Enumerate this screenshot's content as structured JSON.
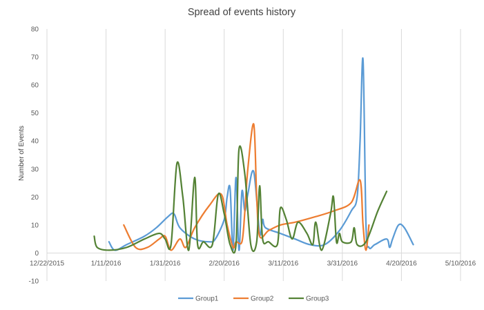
{
  "chart_data": {
    "type": "line",
    "title": "Spread of events history",
    "xlabel": "",
    "ylabel": "Number of Events",
    "x_type": "date",
    "xlim": [
      "2015-12-22",
      "2016-05-10"
    ],
    "ylim": [
      -10,
      80
    ],
    "x_ticks": [
      "12/22/2015",
      "1/11/2016",
      "1/31/2016",
      "2/20/2016",
      "3/11/2016",
      "3/31/2016",
      "4/20/2016",
      "5/10/2016"
    ],
    "y_ticks": [
      "-10",
      "0",
      "10",
      "20",
      "30",
      "40",
      "50",
      "60",
      "70",
      "80"
    ],
    "grid": "vertical",
    "legend": "bottom",
    "smooth": true,
    "series": [
      {
        "name": "Group1",
        "color": "#5B9BD5",
        "points": [
          [
            "2016-01-12",
            4
          ],
          [
            "2016-01-14",
            1
          ],
          [
            "2016-01-18",
            3
          ],
          [
            "2016-01-24",
            6
          ],
          [
            "2016-01-28",
            9
          ],
          [
            "2016-02-01",
            13
          ],
          [
            "2016-02-03",
            14
          ],
          [
            "2016-02-05",
            9
          ],
          [
            "2016-02-10",
            5
          ],
          [
            "2016-02-15",
            4
          ],
          [
            "2016-02-17",
            5
          ],
          [
            "2016-02-20",
            12
          ],
          [
            "2016-02-21",
            20
          ],
          [
            "2016-02-22",
            23
          ],
          [
            "2016-02-23",
            1
          ],
          [
            "2016-02-24",
            27
          ],
          [
            "2016-02-25",
            1
          ],
          [
            "2016-02-26",
            22
          ],
          [
            "2016-02-27",
            15
          ],
          [
            "2016-02-28",
            21
          ],
          [
            "2016-03-01",
            29
          ],
          [
            "2016-03-03",
            7
          ],
          [
            "2016-03-04",
            12
          ],
          [
            "2016-03-05",
            9
          ],
          [
            "2016-03-10",
            7
          ],
          [
            "2016-03-15",
            5
          ],
          [
            "2016-03-20",
            3
          ],
          [
            "2016-03-25",
            3
          ],
          [
            "2016-03-30",
            8
          ],
          [
            "2016-04-03",
            15
          ],
          [
            "2016-04-05",
            20
          ],
          [
            "2016-04-06",
            40
          ],
          [
            "2016-04-07",
            69
          ],
          [
            "2016-04-08",
            10
          ],
          [
            "2016-04-09",
            2
          ],
          [
            "2016-04-11",
            3
          ],
          [
            "2016-04-15",
            5
          ],
          [
            "2016-04-16",
            2
          ],
          [
            "2016-04-17",
            5
          ],
          [
            "2016-04-19",
            10
          ],
          [
            "2016-04-21",
            9
          ],
          [
            "2016-04-24",
            3
          ]
        ]
      },
      {
        "name": "Group2",
        "color": "#ED7D31",
        "points": [
          [
            "2016-01-17",
            10
          ],
          [
            "2016-01-21",
            2
          ],
          [
            "2016-01-25",
            2
          ],
          [
            "2016-01-29",
            5
          ],
          [
            "2016-01-31",
            6
          ],
          [
            "2016-02-02",
            1
          ],
          [
            "2016-02-05",
            5
          ],
          [
            "2016-02-07",
            2
          ],
          [
            "2016-02-10",
            9
          ],
          [
            "2016-02-15",
            17
          ],
          [
            "2016-02-19",
            21
          ],
          [
            "2016-02-21",
            10
          ],
          [
            "2016-02-23",
            2
          ],
          [
            "2016-02-24",
            4
          ],
          [
            "2016-02-26",
            4
          ],
          [
            "2016-02-27",
            15
          ],
          [
            "2016-02-28",
            30
          ],
          [
            "2016-03-01",
            46
          ],
          [
            "2016-03-02",
            20
          ],
          [
            "2016-03-03",
            6
          ],
          [
            "2016-03-06",
            8
          ],
          [
            "2016-03-10",
            10
          ],
          [
            "2016-03-15",
            11
          ],
          [
            "2016-03-22",
            13
          ],
          [
            "2016-03-28",
            15
          ],
          [
            "2016-04-03",
            18
          ],
          [
            "2016-04-06",
            26
          ],
          [
            "2016-04-07",
            10
          ],
          [
            "2016-04-08",
            1
          ],
          [
            "2016-04-09",
            10
          ]
        ]
      },
      {
        "name": "Group3",
        "color": "#548235",
        "points": [
          [
            "2016-01-07",
            6
          ],
          [
            "2016-01-08",
            2
          ],
          [
            "2016-01-12",
            1
          ],
          [
            "2016-01-18",
            2
          ],
          [
            "2016-01-24",
            5
          ],
          [
            "2016-01-29",
            7
          ],
          [
            "2016-01-31",
            5
          ],
          [
            "2016-02-02",
            3
          ],
          [
            "2016-02-04",
            32
          ],
          [
            "2016-02-06",
            20
          ],
          [
            "2016-02-08",
            1
          ],
          [
            "2016-02-10",
            27
          ],
          [
            "2016-02-11",
            3
          ],
          [
            "2016-02-13",
            4
          ],
          [
            "2016-02-16",
            3
          ],
          [
            "2016-02-18",
            21
          ],
          [
            "2016-02-20",
            14
          ],
          [
            "2016-02-22",
            3
          ],
          [
            "2016-02-24",
            3
          ],
          [
            "2016-02-25",
            37
          ],
          [
            "2016-02-27",
            28
          ],
          [
            "2016-02-29",
            3
          ],
          [
            "2016-03-02",
            4
          ],
          [
            "2016-03-03",
            24
          ],
          [
            "2016-03-04",
            5
          ],
          [
            "2016-03-06",
            4
          ],
          [
            "2016-03-09",
            3
          ],
          [
            "2016-03-10",
            16
          ],
          [
            "2016-03-12",
            12
          ],
          [
            "2016-03-14",
            5
          ],
          [
            "2016-03-16",
            11
          ],
          [
            "2016-03-19",
            7
          ],
          [
            "2016-03-21",
            3
          ],
          [
            "2016-03-22",
            11
          ],
          [
            "2016-03-24",
            1
          ],
          [
            "2016-03-27",
            14
          ],
          [
            "2016-03-28",
            20
          ],
          [
            "2016-03-29",
            4
          ],
          [
            "2016-03-30",
            7
          ],
          [
            "2016-03-31",
            4
          ],
          [
            "2016-04-03",
            4
          ],
          [
            "2016-04-04",
            9
          ],
          [
            "2016-04-05",
            3
          ],
          [
            "2016-04-08",
            4
          ],
          [
            "2016-04-12",
            15
          ],
          [
            "2016-04-15",
            22
          ]
        ]
      }
    ]
  }
}
